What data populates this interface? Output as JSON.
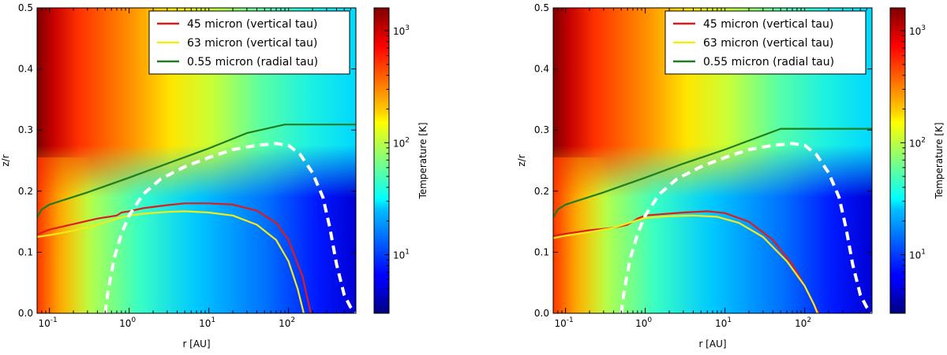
{
  "chart_data": [
    {
      "type": "heatmap",
      "title": "",
      "xlabel": "r [AU]",
      "ylabel": "z/r",
      "xscale": "log",
      "xlim": [
        0.07,
        700
      ],
      "ylim": [
        0,
        0.5
      ],
      "yticks": [
        "0.0",
        "0.1",
        "0.2",
        "0.3",
        "0.4",
        "0.5"
      ],
      "xticks": [
        {
          "base": "10",
          "exp": "-1"
        },
        {
          "base": "10",
          "exp": "0"
        },
        {
          "base": "10",
          "exp": "1"
        },
        {
          "base": "10",
          "exp": "2"
        }
      ],
      "colorbar": {
        "label": "Temperature [K]",
        "scale": "log",
        "range": [
          3,
          1600
        ],
        "colormap": "jet",
        "ticks": [
          {
            "base": "10",
            "exp": "1"
          },
          {
            "base": "10",
            "exp": "2"
          },
          {
            "base": "10",
            "exp": "3"
          }
        ]
      },
      "legend": {
        "position": "top-right",
        "entries": [
          {
            "label": "45 micron (vertical tau)",
            "color": "#dd1c1c"
          },
          {
            "label": "63 micron (vertical tau)",
            "color": "#f2ea1a"
          },
          {
            "label": "0.55 micron (radial tau)",
            "color": "#1e7d1e"
          }
        ]
      },
      "series": [
        {
          "name": "45 micron (vertical tau)",
          "color": "#dd1c1c",
          "x": [
            0.07,
            0.1,
            0.2,
            0.4,
            0.7,
            0.8,
            1.0,
            1.5,
            3,
            5,
            10,
            20,
            40,
            70,
            100,
            150,
            190
          ],
          "y": [
            0.129,
            0.137,
            0.146,
            0.155,
            0.16,
            0.165,
            0.167,
            0.172,
            0.177,
            0.18,
            0.18,
            0.178,
            0.168,
            0.148,
            0.12,
            0.06,
            0.0
          ]
        },
        {
          "name": "63 micron (vertical tau)",
          "color": "#f2ea1a",
          "x": [
            0.07,
            0.1,
            0.2,
            0.4,
            0.7,
            1.0,
            1.5,
            3,
            5,
            10,
            20,
            40,
            70,
            100,
            130,
            155
          ],
          "y": [
            0.125,
            0.128,
            0.135,
            0.145,
            0.155,
            0.16,
            0.163,
            0.166,
            0.167,
            0.165,
            0.16,
            0.145,
            0.12,
            0.085,
            0.04,
            0.0
          ]
        },
        {
          "name": "0.55 micron (radial tau)",
          "color": "#1e7d1e",
          "x": [
            0.07,
            0.08,
            0.1,
            0.3,
            1,
            3,
            10,
            30,
            90,
            700
          ],
          "y": [
            0.157,
            0.17,
            0.178,
            0.198,
            0.222,
            0.245,
            0.27,
            0.295,
            0.309,
            0.309
          ]
        },
        {
          "name": "boundary",
          "color": "#ffffff",
          "dashed": true,
          "x": [
            0.5,
            0.55,
            0.65,
            0.8,
            1.0,
            1.5,
            2.5,
            5,
            10,
            20,
            40,
            70,
            100,
            140,
            200,
            270,
            330,
            400,
            500,
            600,
            700
          ],
          "y": [
            0.0,
            0.04,
            0.09,
            0.13,
            0.16,
            0.195,
            0.22,
            0.24,
            0.255,
            0.268,
            0.275,
            0.278,
            0.275,
            0.26,
            0.23,
            0.19,
            0.14,
            0.08,
            0.03,
            0.01,
            0.0
          ]
        }
      ]
    },
    {
      "type": "heatmap",
      "title": "",
      "xlabel": "r [AU]",
      "ylabel": "z/r",
      "xscale": "log",
      "xlim": [
        0.07,
        700
      ],
      "ylim": [
        0,
        0.5
      ],
      "yticks": [
        "0.0",
        "0.1",
        "0.2",
        "0.3",
        "0.4",
        "0.5"
      ],
      "xticks": [
        {
          "base": "10",
          "exp": "-1"
        },
        {
          "base": "10",
          "exp": "0"
        },
        {
          "base": "10",
          "exp": "1"
        },
        {
          "base": "10",
          "exp": "2"
        }
      ],
      "colorbar": {
        "label": "Temperature [K]",
        "scale": "log",
        "range": [
          3,
          1600
        ],
        "colormap": "jet",
        "ticks": [
          {
            "base": "10",
            "exp": "1"
          },
          {
            "base": "10",
            "exp": "2"
          },
          {
            "base": "10",
            "exp": "3"
          }
        ]
      },
      "legend": {
        "position": "top-right",
        "entries": [
          {
            "label": "45 micron (vertical tau)",
            "color": "#dd1c1c"
          },
          {
            "label": "63 micron (vertical tau)",
            "color": "#f2ea1a"
          },
          {
            "label": "0.55 micron (radial tau)",
            "color": "#1e7d1e"
          }
        ]
      },
      "series": [
        {
          "name": "45 micron (vertical tau)",
          "color": "#dd1c1c",
          "x": [
            0.07,
            0.1,
            0.2,
            0.4,
            0.6,
            0.8,
            1.0,
            1.5,
            3,
            6,
            10,
            20,
            40,
            70,
            100,
            130,
            150
          ],
          "y": [
            0.127,
            0.13,
            0.136,
            0.14,
            0.145,
            0.155,
            0.16,
            0.162,
            0.165,
            0.167,
            0.164,
            0.15,
            0.12,
            0.08,
            0.045,
            0.015,
            0.0
          ]
        },
        {
          "name": "63 micron (vertical tau)",
          "color": "#f2ea1a",
          "x": [
            0.07,
            0.1,
            0.2,
            0.4,
            0.7,
            1.0,
            2,
            4,
            8,
            15,
            30,
            60,
            100,
            130,
            145
          ],
          "y": [
            0.123,
            0.127,
            0.133,
            0.14,
            0.15,
            0.156,
            0.159,
            0.16,
            0.158,
            0.148,
            0.125,
            0.085,
            0.045,
            0.015,
            0.0
          ]
        },
        {
          "name": "0.55 micron (radial tau)",
          "color": "#1e7d1e",
          "x": [
            0.07,
            0.08,
            0.1,
            0.3,
            1,
            3,
            10,
            50,
            700
          ],
          "y": [
            0.157,
            0.17,
            0.178,
            0.198,
            0.222,
            0.245,
            0.268,
            0.302,
            0.302
          ]
        },
        {
          "name": "boundary",
          "color": "#ffffff",
          "dashed": true,
          "x": [
            0.5,
            0.55,
            0.65,
            0.8,
            1.0,
            1.5,
            2.5,
            5,
            10,
            20,
            40,
            70,
            100,
            140,
            200,
            270,
            330,
            400,
            500,
            600,
            700
          ],
          "y": [
            0.0,
            0.04,
            0.09,
            0.13,
            0.16,
            0.195,
            0.22,
            0.24,
            0.255,
            0.268,
            0.275,
            0.278,
            0.275,
            0.26,
            0.23,
            0.19,
            0.14,
            0.08,
            0.03,
            0.01,
            0.0
          ]
        }
      ]
    }
  ]
}
